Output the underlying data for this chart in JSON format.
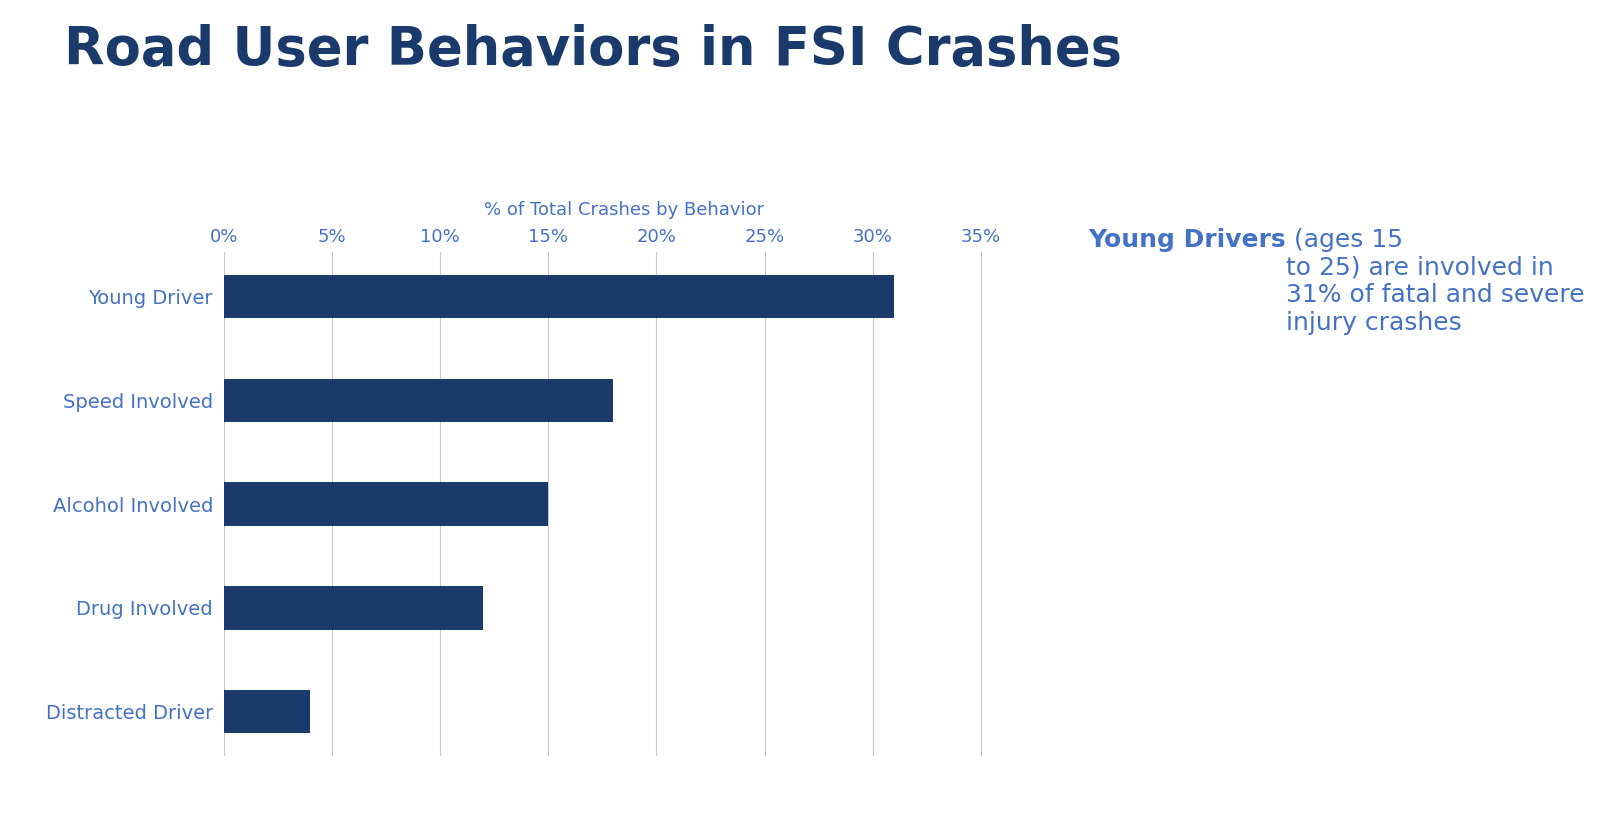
{
  "title": "Road User Behaviors in FSI Crashes",
  "title_color": "#1a3a6b",
  "title_fontsize": 38,
  "xlabel": "% of Total Crashes by Behavior",
  "xlabel_color": "#4472c4",
  "xlabel_fontsize": 13,
  "categories": [
    "Distracted Driver",
    "Drug Involved",
    "Alcohol Involved",
    "Speed Involved",
    "Young Driver"
  ],
  "values": [
    4,
    12,
    15,
    18,
    31
  ],
  "bar_color": "#1a3a6b",
  "bar_height": 0.42,
  "xlim": [
    0,
    37
  ],
  "xticks": [
    0,
    5,
    10,
    15,
    20,
    25,
    30,
    35
  ],
  "tick_label_color": "#4472c4",
  "tick_fontsize": 13,
  "ytick_fontsize": 14,
  "ytick_color": "#4472c4",
  "grid_color": "#c8c8c8",
  "background_color": "#ffffff",
  "annotation_bold": "Young Drivers",
  "annotation_rest": " (ages 15\nto 25) are involved in\n31% of fatal and severe\ninjury crashes",
  "annotation_color": "#4472c4",
  "annotation_fontsize": 18,
  "fig_width": 16.0,
  "fig_height": 8.13
}
